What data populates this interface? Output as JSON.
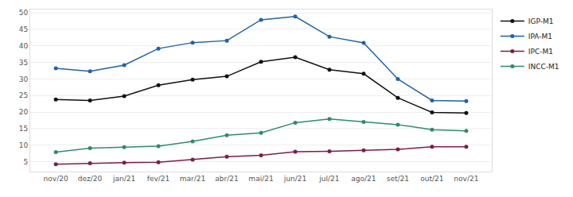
{
  "chart_data": {
    "type": "line",
    "categories": [
      "nov/20",
      "dez/20",
      "jan/21",
      "fev/21",
      "mar/21",
      "abr/21",
      "mai/21",
      "jun/21",
      "jul/21",
      "ago/21",
      "set/21",
      "out/21",
      "nov/21"
    ],
    "series": [
      {
        "name": "IGP-M1",
        "color": "#111111",
        "values": [
          23.8,
          23.5,
          24.8,
          28.1,
          29.8,
          30.8,
          35.2,
          36.6,
          32.8,
          31.6,
          24.3,
          19.9,
          19.7
        ]
      },
      {
        "name": "IPA-M1",
        "color": "#1f63a8",
        "values": [
          33.2,
          32.3,
          34.2,
          39.2,
          41.0,
          41.6,
          47.9,
          48.9,
          42.8,
          40.9,
          30.0,
          23.5,
          23.3
        ]
      },
      {
        "name": "IPC-M1",
        "color": "#7a1d4c",
        "values": [
          4.2,
          4.5,
          4.7,
          4.8,
          5.6,
          6.5,
          6.9,
          8.0,
          8.1,
          8.4,
          8.7,
          9.5,
          9.5
        ]
      },
      {
        "name": "INCC-M1",
        "color": "#2e8b6f",
        "values": [
          7.9,
          9.1,
          9.4,
          9.7,
          11.1,
          13.0,
          13.7,
          16.8,
          17.9,
          17.0,
          16.2,
          14.7,
          14.3
        ]
      }
    ],
    "ylim": [
      2,
      51
    ],
    "yticks": [
      5,
      10,
      15,
      20,
      25,
      30,
      35,
      40,
      45,
      50
    ],
    "grid": true,
    "legend": "top right",
    "marker": "circle"
  }
}
